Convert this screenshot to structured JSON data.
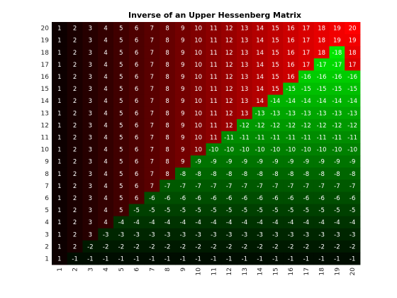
{
  "chart_data": {
    "type": "heatmap",
    "title": "Inverse of an Upper Hessenberg Matrix",
    "xlabel": "",
    "ylabel": "",
    "x_ticks": [
      "1",
      "2",
      "3",
      "4",
      "5",
      "6",
      "7",
      "8",
      "9",
      "10",
      "11",
      "12",
      "13",
      "14",
      "15",
      "16",
      "17",
      "18",
      "19",
      "20"
    ],
    "y_ticks": [
      "20",
      "19",
      "18",
      "17",
      "16",
      "15",
      "14",
      "13",
      "12",
      "11",
      "10",
      "9",
      "8",
      "7",
      "6",
      "5",
      "4",
      "3",
      "2",
      "1"
    ],
    "x_tick_rotation": "vertical",
    "colormap": "red-black-green",
    "colors": {
      "zero": "#000000",
      "positive_max": "#ff0000",
      "negative_max": "#00ff00",
      "text": "#ffffff",
      "title": "#000000",
      "tick_text": "#262626"
    },
    "value_range": [
      -20,
      20
    ],
    "grid": false,
    "legend": "none",
    "cell_labels": true,
    "rows": [
      [
        1,
        2,
        3,
        4,
        5,
        6,
        7,
        8,
        9,
        10,
        11,
        12,
        13,
        14,
        15,
        16,
        17,
        18,
        19,
        20
      ],
      [
        1,
        2,
        3,
        4,
        5,
        6,
        7,
        8,
        9,
        10,
        11,
        12,
        13,
        14,
        15,
        16,
        17,
        18,
        19,
        19
      ],
      [
        1,
        2,
        3,
        4,
        5,
        6,
        7,
        8,
        9,
        10,
        11,
        12,
        13,
        14,
        15,
        16,
        17,
        18,
        -18,
        18
      ],
      [
        1,
        2,
        3,
        4,
        5,
        6,
        7,
        8,
        9,
        10,
        11,
        12,
        13,
        14,
        15,
        16,
        17,
        -17,
        -17,
        17
      ],
      [
        1,
        2,
        3,
        4,
        5,
        6,
        7,
        8,
        9,
        10,
        11,
        12,
        13,
        14,
        15,
        16,
        -16,
        -16,
        -16,
        -16
      ],
      [
        1,
        2,
        3,
        4,
        5,
        6,
        7,
        8,
        9,
        10,
        11,
        12,
        13,
        14,
        15,
        -15,
        -15,
        -15,
        -15,
        -15
      ],
      [
        1,
        2,
        3,
        4,
        5,
        6,
        7,
        8,
        9,
        10,
        11,
        12,
        13,
        14,
        -14,
        -14,
        -14,
        -14,
        -14,
        -14
      ],
      [
        1,
        2,
        3,
        4,
        5,
        6,
        7,
        8,
        9,
        10,
        11,
        12,
        13,
        -13,
        -13,
        -13,
        -13,
        -13,
        -13,
        -13
      ],
      [
        1,
        2,
        3,
        4,
        5,
        6,
        7,
        8,
        9,
        10,
        11,
        12,
        -12,
        -12,
        -12,
        -12,
        -12,
        -12,
        -12,
        -12
      ],
      [
        1,
        2,
        3,
        4,
        5,
        6,
        7,
        8,
        9,
        10,
        11,
        -11,
        -11,
        -11,
        -11,
        -11,
        -11,
        -11,
        -11,
        -11
      ],
      [
        1,
        2,
        3,
        4,
        5,
        6,
        7,
        8,
        9,
        10,
        -10,
        -10,
        -10,
        -10,
        -10,
        -10,
        -10,
        -10,
        -10,
        -10
      ],
      [
        1,
        2,
        3,
        4,
        5,
        6,
        7,
        8,
        9,
        -9,
        -9,
        -9,
        -9,
        -9,
        -9,
        -9,
        -9,
        -9,
        -9,
        -9
      ],
      [
        1,
        2,
        3,
        4,
        5,
        6,
        7,
        8,
        -8,
        -8,
        -8,
        -8,
        -8,
        -8,
        -8,
        -8,
        -8,
        -8,
        -8,
        -8
      ],
      [
        1,
        2,
        3,
        4,
        5,
        6,
        7,
        -7,
        -7,
        -7,
        -7,
        -7,
        -7,
        -7,
        -7,
        -7,
        -7,
        -7,
        -7,
        -7
      ],
      [
        1,
        2,
        3,
        4,
        5,
        6,
        -6,
        -6,
        -6,
        -6,
        -6,
        -6,
        -6,
        -6,
        -6,
        -6,
        -6,
        -6,
        -6,
        -6
      ],
      [
        1,
        2,
        3,
        4,
        5,
        -5,
        -5,
        -5,
        -5,
        -5,
        -5,
        -5,
        -5,
        -5,
        -5,
        -5,
        -5,
        -5,
        -5,
        -5
      ],
      [
        1,
        2,
        3,
        4,
        -4,
        -4,
        -4,
        -4,
        -4,
        -4,
        -4,
        -4,
        -4,
        -4,
        -4,
        -4,
        -4,
        -4,
        -4,
        -4
      ],
      [
        1,
        2,
        3,
        -3,
        -3,
        -3,
        -3,
        -3,
        -3,
        -3,
        -3,
        -3,
        -3,
        -3,
        -3,
        -3,
        -3,
        -3,
        -3,
        -3
      ],
      [
        1,
        2,
        -2,
        -2,
        -2,
        -2,
        -2,
        -2,
        -2,
        -2,
        -2,
        -2,
        -2,
        -2,
        -2,
        -2,
        -2,
        -2,
        -2,
        -2
      ],
      [
        1,
        -1,
        -1,
        -1,
        -1,
        -1,
        -1,
        -1,
        -1,
        -1,
        -1,
        -1,
        -1,
        -1,
        -1,
        -1,
        -1,
        -1,
        -1,
        -1
      ]
    ]
  }
}
